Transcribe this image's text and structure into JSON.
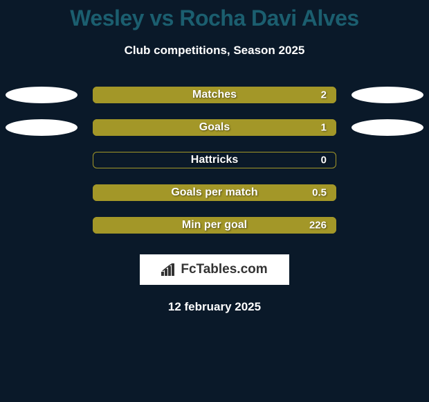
{
  "title": "Wesley vs Rocha Davi Alves",
  "subtitle": "Club competitions, Season 2025",
  "background_color": "#0a1929",
  "title_color": "#1b5e6f",
  "bar_color": "#a39728",
  "ellipse_color": "#ffffff",
  "rows": [
    {
      "label": "Matches",
      "value": "2",
      "fill_percent": 100,
      "has_left_ellipse": true,
      "has_right_ellipse": true
    },
    {
      "label": "Goals",
      "value": "1",
      "fill_percent": 100,
      "has_left_ellipse": true,
      "has_right_ellipse": true
    },
    {
      "label": "Hattricks",
      "value": "0",
      "fill_percent": 0,
      "has_left_ellipse": false,
      "has_right_ellipse": false
    },
    {
      "label": "Goals per match",
      "value": "0.5",
      "fill_percent": 100,
      "has_left_ellipse": false,
      "has_right_ellipse": false
    },
    {
      "label": "Min per goal",
      "value": "226",
      "fill_percent": 100,
      "has_left_ellipse": false,
      "has_right_ellipse": false
    }
  ],
  "logo_text": "FcTables.com",
  "date": "12 february 2025"
}
